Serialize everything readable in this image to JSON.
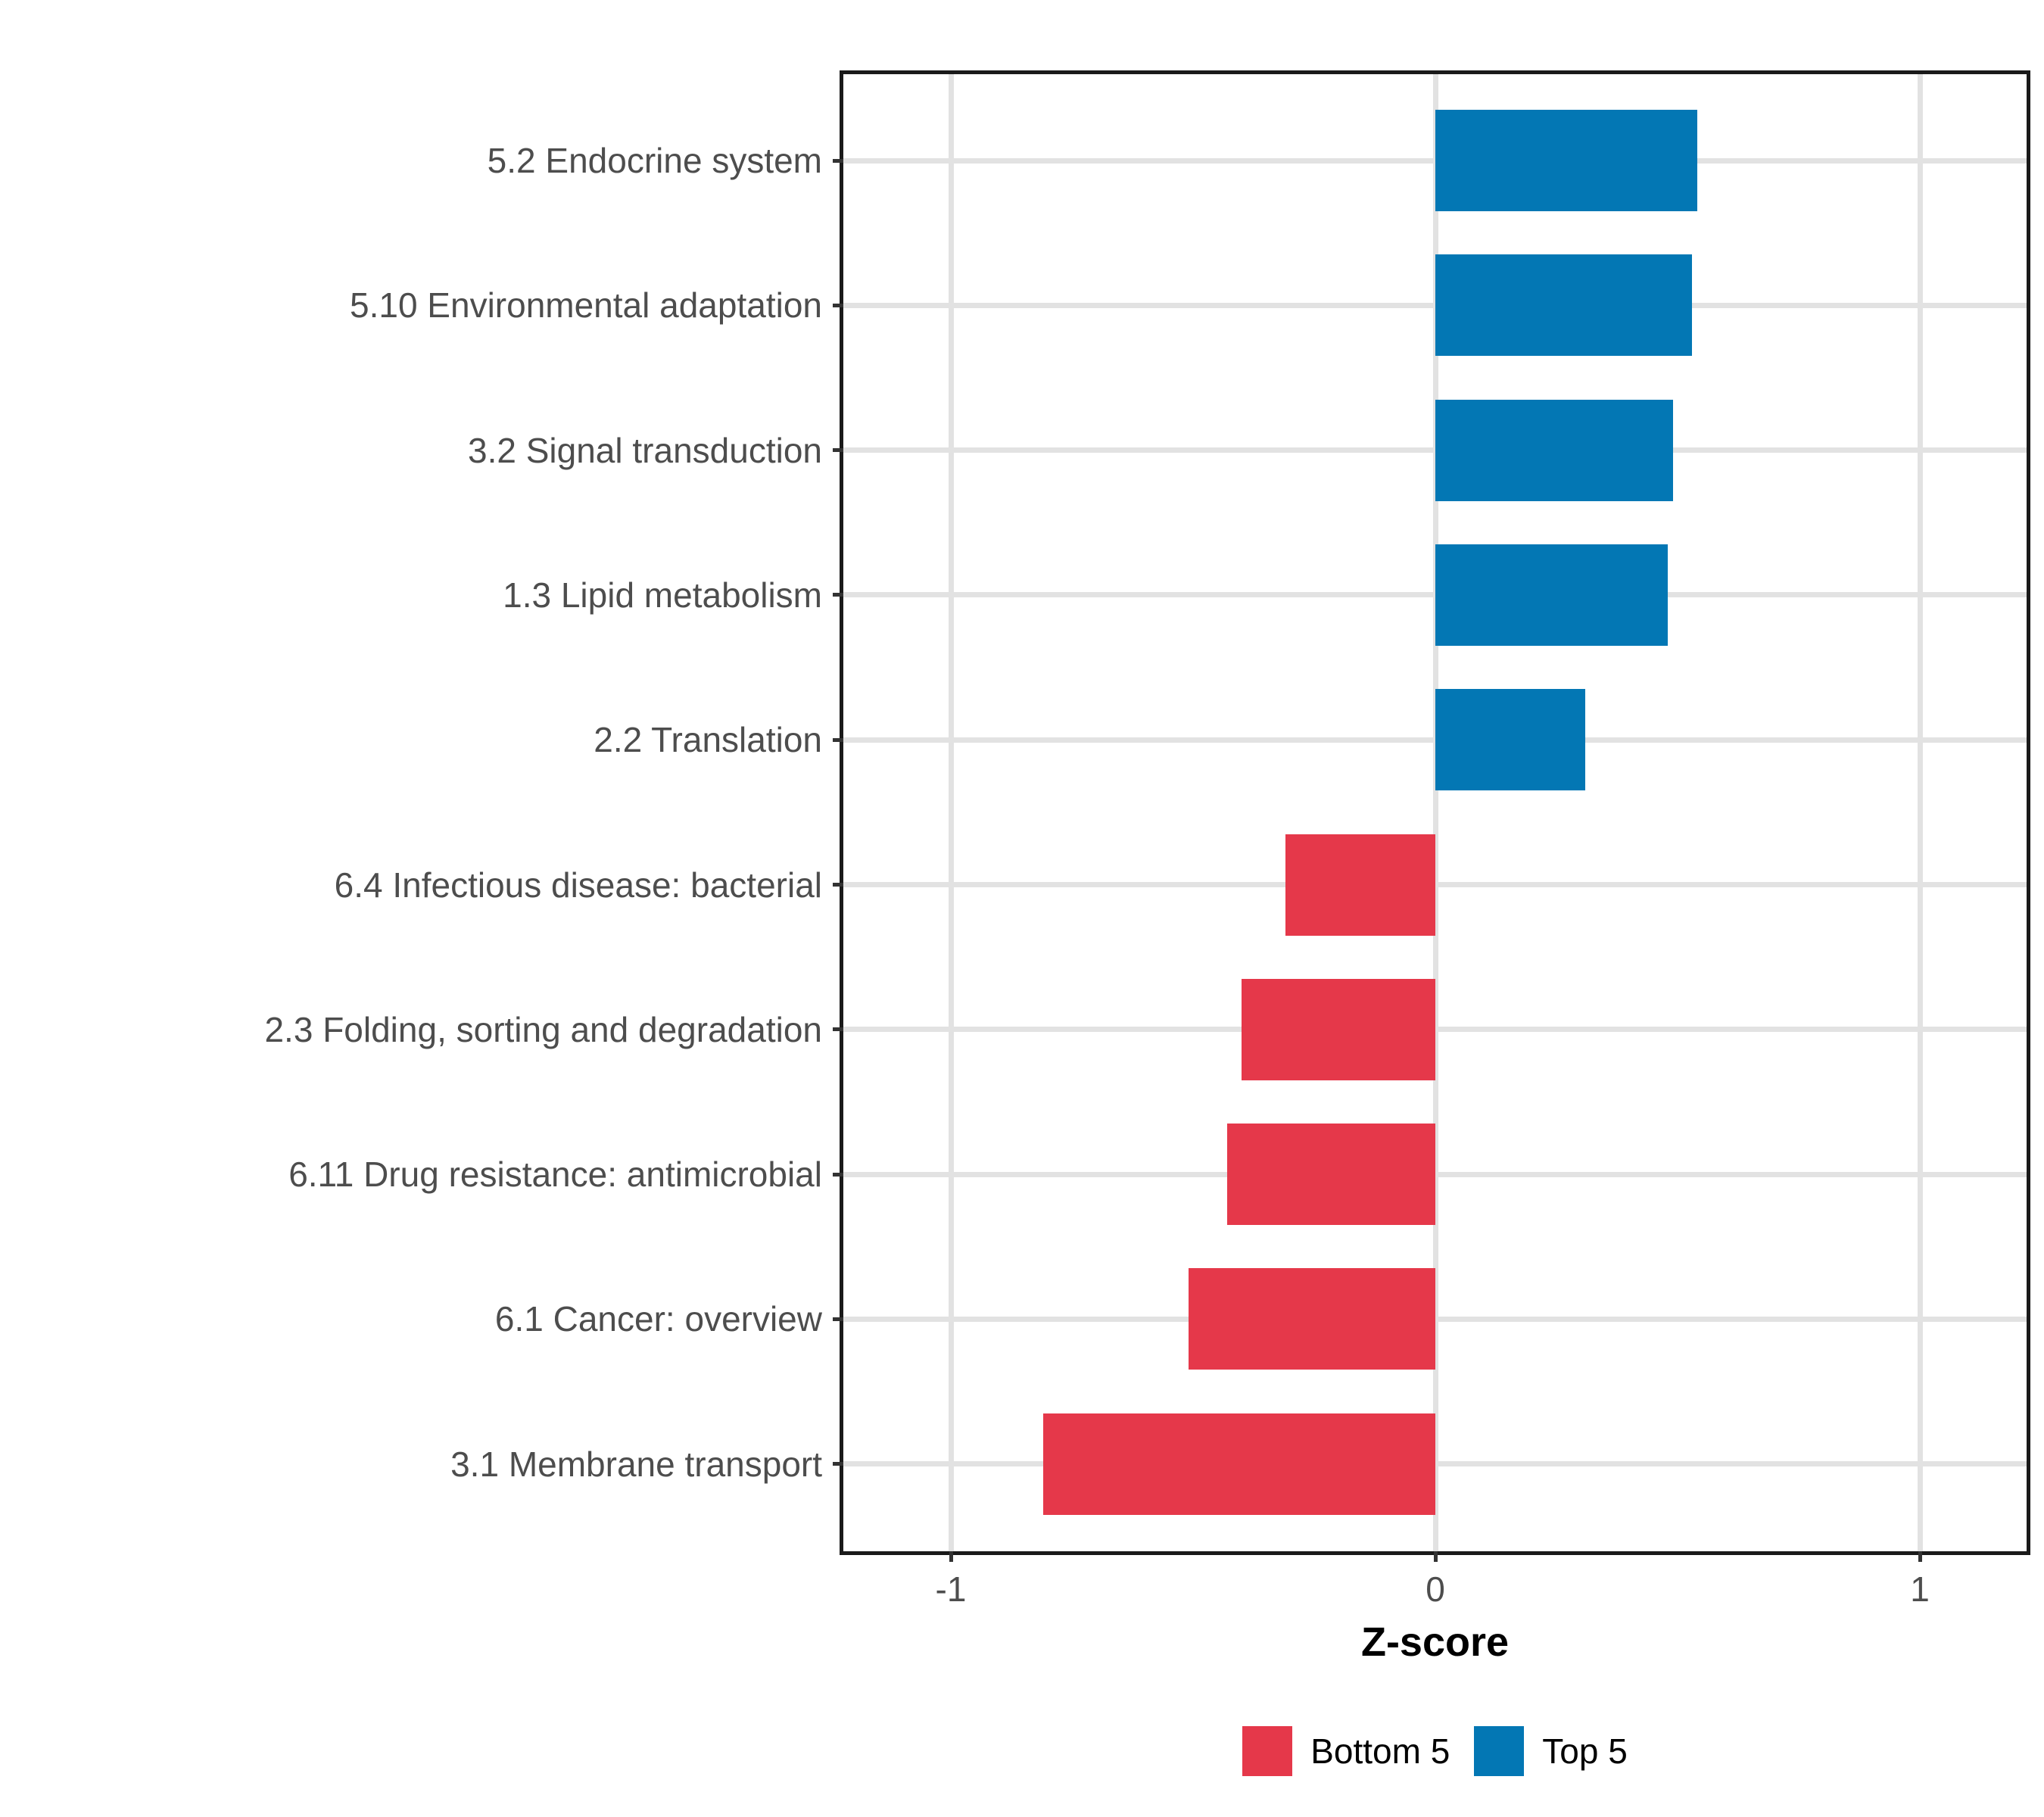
{
  "figure": {
    "background": "#FFFFFF"
  },
  "chart_data": {
    "type": "bar",
    "orientation": "horizontal",
    "title": "",
    "xlabel": "Z-score",
    "ylabel": "",
    "xlim": [
      -1.22,
      1.22
    ],
    "x_ticks": [
      -1,
      0,
      1
    ],
    "x_tick_labels": [
      "-1",
      "0",
      "1"
    ],
    "grid": "major-only",
    "legend_position": "bottom",
    "categories": [
      "5.2 Endocrine system",
      "5.10 Environmental adaptation",
      "3.2 Signal transduction",
      "1.3 Lipid metabolism",
      "2.2 Translation",
      "6.4 Infectious disease: bacterial",
      "2.3 Folding, sorting and degradation",
      "6.11 Drug resistance: antimicrobial",
      "6.1 Cancer: overview",
      "3.1 Membrane transport"
    ],
    "values": [
      0.54,
      0.53,
      0.49,
      0.48,
      0.31,
      -0.31,
      -0.4,
      -0.43,
      -0.51,
      -0.81
    ],
    "groups": [
      "Top 5",
      "Top 5",
      "Top 5",
      "Top 5",
      "Top 5",
      "Bottom 5",
      "Bottom 5",
      "Bottom 5",
      "Bottom 5",
      "Bottom 5"
    ],
    "colors": {
      "Top 5": "#0377B4",
      "Bottom 5": "#E5384A"
    }
  },
  "axis_style": {
    "grid_color": "#E2E2E2",
    "border_color": "#1A1A1A",
    "tick_color": "#333333",
    "tick_label_color": "#4D4D4D"
  },
  "legend": {
    "items": [
      {
        "label": "Bottom 5",
        "color": "#E5384A"
      },
      {
        "label": "Top 5",
        "color": "#0377B4"
      }
    ]
  }
}
